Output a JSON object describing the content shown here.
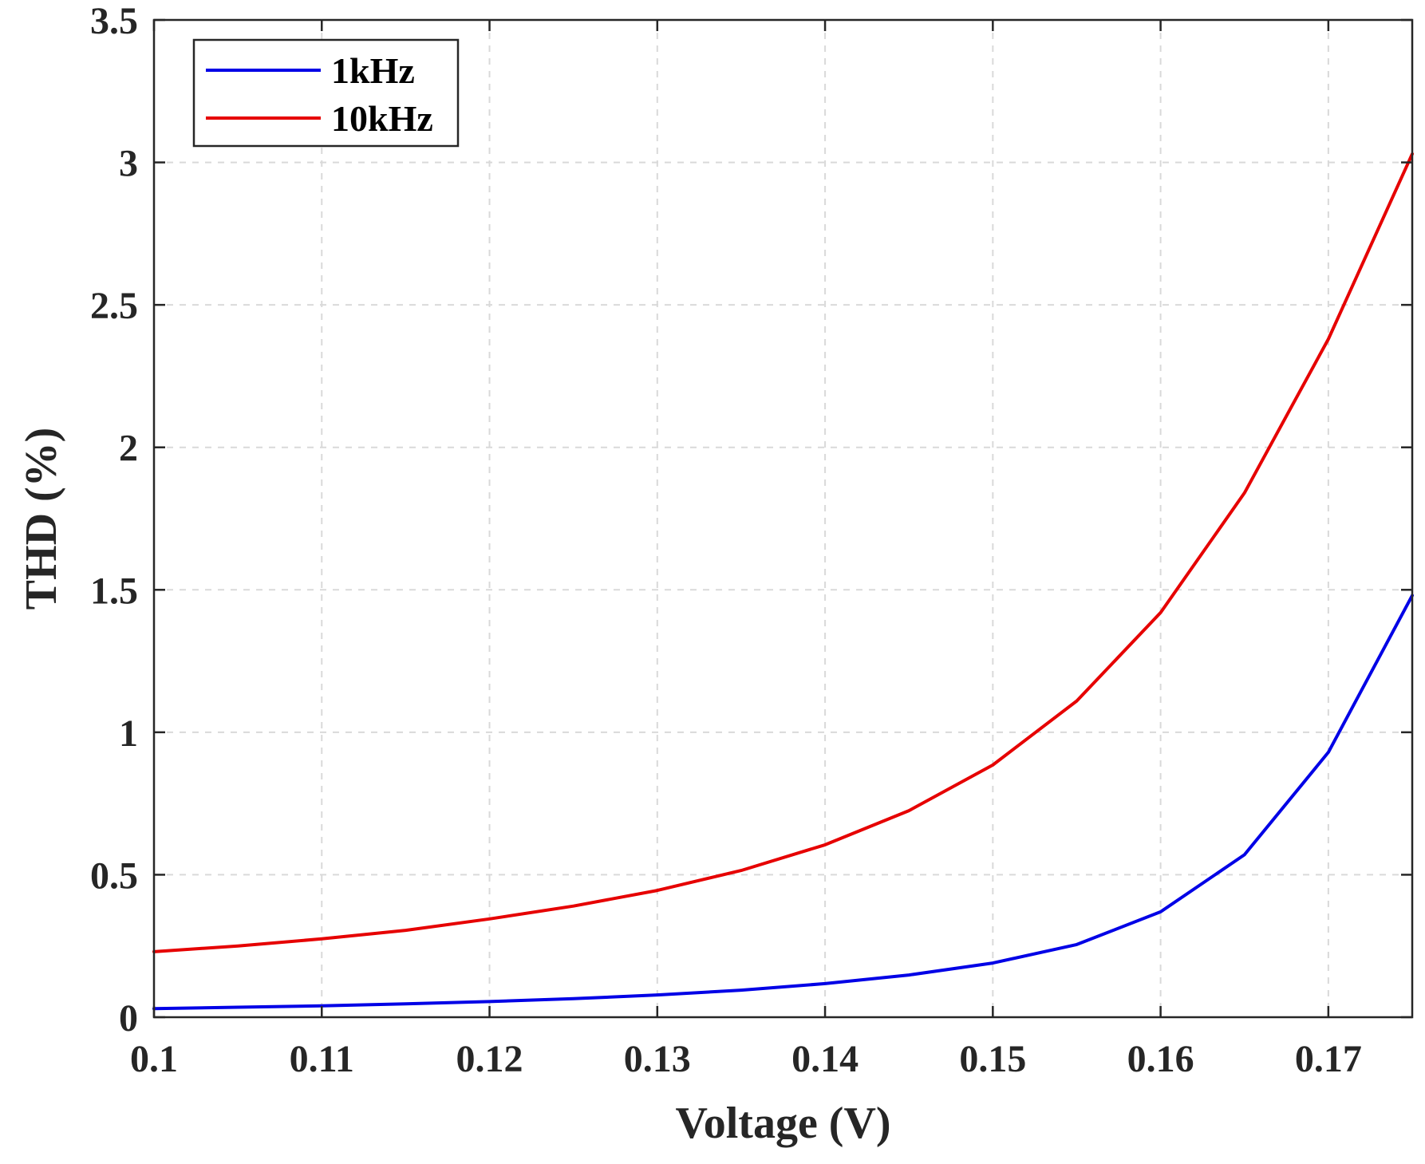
{
  "chart_data": {
    "type": "line",
    "title": "",
    "xlabel": "Voltage (V)",
    "ylabel": "THD (%)",
    "xlim": [
      0.1,
      0.175
    ],
    "ylim": [
      0,
      3.5
    ],
    "xticks": [
      0.1,
      0.11,
      0.12,
      0.13,
      0.14,
      0.15,
      0.16,
      0.17
    ],
    "xtick_labels": [
      "0.1",
      "0.11",
      "0.12",
      "0.13",
      "0.14",
      "0.15",
      "0.16",
      "0.17"
    ],
    "yticks": [
      0,
      0.5,
      1,
      1.5,
      2,
      2.5,
      3,
      3.5
    ],
    "ytick_labels": [
      "0",
      "0.5",
      "1",
      "1.5",
      "2",
      "2.5",
      "3",
      "3.5"
    ],
    "grid": true,
    "legend_position": "top-left",
    "x": [
      0.1,
      0.105,
      0.11,
      0.115,
      0.12,
      0.125,
      0.13,
      0.135,
      0.14,
      0.145,
      0.15,
      0.155,
      0.16,
      0.165,
      0.17,
      0.175
    ],
    "series": [
      {
        "name": "1kHz",
        "color": "#0000e6",
        "values": [
          0.03,
          0.035,
          0.04,
          0.047,
          0.055,
          0.065,
          0.078,
          0.095,
          0.118,
          0.148,
          0.19,
          0.255,
          0.37,
          0.57,
          0.93,
          1.48
        ]
      },
      {
        "name": "10kHz",
        "color": "#e60000",
        "values": [
          0.23,
          0.25,
          0.275,
          0.305,
          0.345,
          0.39,
          0.445,
          0.515,
          0.605,
          0.725,
          0.885,
          1.11,
          1.42,
          1.84,
          2.38,
          3.03
        ]
      }
    ]
  }
}
